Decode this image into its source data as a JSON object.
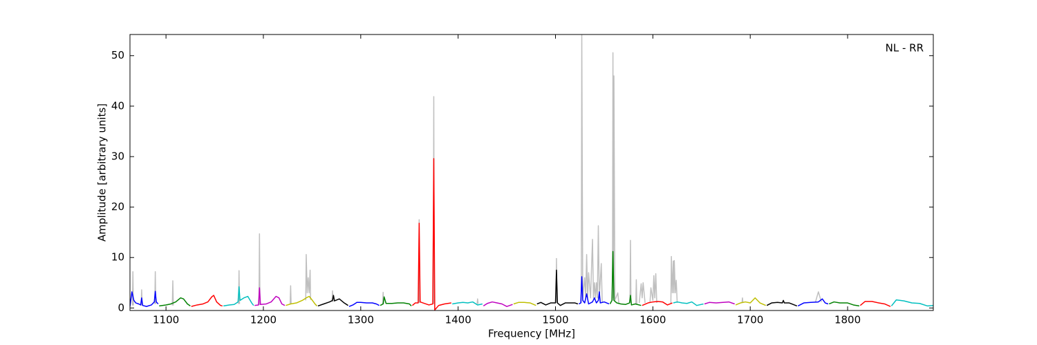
{
  "chart_data": {
    "type": "line",
    "xlabel": "Frequency [MHz]",
    "ylabel": "Amplitude [arbitrary units]",
    "annotation": "NL - RR",
    "xlim": [
      1063,
      1888
    ],
    "ylim": [
      -0.5,
      54.2
    ],
    "xticks": [
      1100,
      1200,
      1300,
      1400,
      1500,
      1600,
      1700,
      1800
    ],
    "yticks": [
      0,
      10,
      20,
      30,
      40,
      50
    ],
    "series": [
      {
        "color": "#bfbfbf",
        "x": [
          1065.5,
          1066,
          1066.5,
          null,
          1074.5,
          1075,
          1075.5,
          null,
          1088.5,
          1089,
          1089.5,
          null,
          1106.5,
          1107,
          1107.5,
          null,
          1174.5,
          1175,
          1175.5,
          null,
          1195.5,
          1196,
          1196.5,
          null,
          1227.5,
          1228,
          1228.5,
          null,
          1243.5,
          1244,
          1245,
          1246,
          1247,
          1248,
          1248.5,
          null,
          1270.5,
          1271,
          1271.5,
          null,
          1322.5,
          1323,
          1323.5,
          null,
          1359.5,
          1360,
          1360.5,
          null,
          1374.5,
          1375,
          1375.5,
          null,
          1419.5,
          1420,
          1420.5,
          null,
          1500.5,
          1501,
          1501.5,
          null,
          1526.5,
          1527,
          1528,
          1530,
          1531,
          1532,
          1533,
          1534,
          1536,
          1538,
          1539,
          1540,
          1541,
          1542,
          1543,
          1544,
          1545,
          1547,
          1548,
          null,
          1558.5,
          1559,
          1559.5,
          1560,
          1561,
          1564,
          1565,
          null,
          1576.5,
          1577,
          1577.5,
          null,
          1582.5,
          1583,
          1583.5,
          null,
          1586,
          1588,
          1589,
          1590,
          1592,
          null,
          1597,
          1598,
          1600,
          1601,
          1602,
          1603,
          1604,
          null,
          1618.5,
          1619,
          1620,
          1621,
          1621.5,
          1622,
          1623,
          1624,
          1625,
          null,
          1691.5,
          1692,
          1692.5,
          null,
          1767,
          1770,
          1773
        ],
        "values": [
          0.5,
          7.2,
          0.5,
          null,
          0.5,
          3.6,
          0.5,
          null,
          0.8,
          7.2,
          0.8,
          null,
          0.5,
          5.4,
          0.5,
          null,
          0.8,
          7.4,
          0.8,
          null,
          0.6,
          14.7,
          0.6,
          null,
          0.8,
          4.4,
          0.8,
          null,
          1.5,
          10.6,
          3,
          6,
          3,
          7.5,
          1.6,
          null,
          1.2,
          3.4,
          1.2,
          null,
          0.8,
          3.1,
          0.8,
          null,
          1,
          17.5,
          1,
          null,
          0.8,
          41.9,
          0.8,
          null,
          0.8,
          1.8,
          0.8,
          null,
          1,
          9.8,
          1,
          null,
          1,
          54.2,
          2,
          6,
          2,
          10.6,
          2,
          7,
          2,
          13.6,
          2,
          5,
          2,
          5,
          2,
          16.3,
          2,
          8.8,
          1,
          null,
          1.5,
          50.6,
          2,
          46,
          1.5,
          3,
          1,
          null,
          1,
          13.4,
          1,
          null,
          0.8,
          5.6,
          0.8,
          null,
          1,
          4.8,
          2,
          5,
          1,
          null,
          1,
          4,
          1.5,
          6.4,
          2,
          6.8,
          1,
          null,
          1,
          10.2,
          3,
          9.3,
          3,
          9.4,
          3,
          5.5,
          1,
          null,
          1,
          2.0,
          1,
          null,
          1.2,
          3.2,
          1.2
        ]
      },
      {
        "color": "#0000ff",
        "x": [
          1063,
          1065,
          1067,
          1069,
          1072,
          1074,
          1075,
          1076,
          1080,
          1085,
          1088,
          1089,
          1090,
          1092
        ],
        "values": [
          0.3,
          3.2,
          1.5,
          1.0,
          0.8,
          0.6,
          2.0,
          0.5,
          0.3,
          0.6,
          1.2,
          3.3,
          1.2,
          0.8
        ]
      },
      {
        "color": "#008000",
        "x": [
          1093,
          1100,
          1105,
          1110,
          1115,
          1118,
          1122,
          1125
        ],
        "values": [
          0.4,
          0.6,
          0.8,
          1.2,
          2.0,
          1.8,
          0.8,
          0.4
        ]
      },
      {
        "color": "#ff0000",
        "x": [
          1126,
          1132,
          1138,
          1143,
          1147,
          1149,
          1152,
          1156,
          1158
        ],
        "values": [
          0.3,
          0.6,
          0.8,
          1.2,
          2.2,
          2.5,
          1.2,
          0.5,
          0.4
        ]
      },
      {
        "color": "#00bfbf",
        "x": [
          1159,
          1165,
          1170,
          1174,
          1175,
          1176,
          1180,
          1184,
          1188,
          1190
        ],
        "values": [
          0.4,
          0.6,
          0.7,
          1.2,
          4.2,
          1.5,
          2.0,
          2.3,
          1.0,
          0.5
        ]
      },
      {
        "color": "#bf00bf",
        "x": [
          1191,
          1195,
          1196,
          1197,
          1203,
          1208,
          1213,
          1216,
          1219,
          1222
        ],
        "values": [
          0.5,
          0.6,
          4.0,
          0.7,
          0.8,
          1.2,
          2.3,
          2.0,
          0.8,
          0.5
        ]
      },
      {
        "color": "#bfbf00",
        "x": [
          1223,
          1228,
          1234,
          1240,
          1244,
          1247,
          1250,
          1253,
          1255
        ],
        "values": [
          0.5,
          0.8,
          1.0,
          1.5,
          2.0,
          2.3,
          1.6,
          0.8,
          0.4
        ]
      },
      {
        "color": "#000000",
        "x": [
          1256,
          1262,
          1268,
          1271,
          1272,
          1273,
          1278,
          1283,
          1287
        ],
        "values": [
          0.4,
          0.8,
          1.2,
          1.5,
          2.5,
          1.4,
          1.8,
          1.0,
          0.5
        ]
      },
      {
        "color": "#0000ff",
        "x": [
          1288,
          1292,
          1296,
          1300,
          1306,
          1312,
          1316,
          1319
        ],
        "values": [
          0.3,
          0.6,
          1.1,
          1.1,
          1.0,
          1.0,
          0.8,
          0.5
        ]
      },
      {
        "color": "#008000",
        "x": [
          1320,
          1323,
          1324,
          1326,
          1332,
          1338,
          1344,
          1350,
          1352
        ],
        "values": [
          0.5,
          0.8,
          2.2,
          0.9,
          0.9,
          1.0,
          1.0,
          0.8,
          0.4
        ]
      },
      {
        "color": "#ff0000",
        "x": [
          1353,
          1356,
          1359,
          1360,
          1361,
          1364,
          1370,
          1374,
          1375,
          1376,
          1380,
          1386,
          1393
        ],
        "values": [
          0.5,
          1.0,
          1.0,
          16.8,
          1.2,
          1.0,
          0.6,
          0.8,
          29.6,
          -0.4,
          0.5,
          0.8,
          1.0
        ]
      },
      {
        "color": "#00bfbf",
        "x": [
          1394,
          1400,
          1405,
          1410,
          1415,
          1420,
          1425
        ],
        "values": [
          0.8,
          1.0,
          1.1,
          1.0,
          1.2,
          0.6,
          0.8
        ]
      },
      {
        "color": "#bf00bf",
        "x": [
          1426,
          1430,
          1435,
          1440,
          1445,
          1450,
          1456
        ],
        "values": [
          0.4,
          0.9,
          1.2,
          1.0,
          0.8,
          0.3,
          0.7
        ]
      },
      {
        "color": "#bfbf00",
        "x": [
          1457,
          1462,
          1468,
          1474,
          1480
        ],
        "values": [
          0.8,
          1.1,
          1.1,
          1.0,
          0.5
        ]
      },
      {
        "color": "#000000",
        "x": [
          1481,
          1485,
          1490,
          1495,
          1500,
          1501,
          1502,
          1505,
          1510,
          1515,
          1520,
          1523
        ],
        "values": [
          0.8,
          1.1,
          0.6,
          1.0,
          1.0,
          7.5,
          1.0,
          0.5,
          1.0,
          1.0,
          1.0,
          0.8
        ]
      },
      {
        "color": "#0000ff",
        "x": [
          1524,
          1526,
          1527,
          1528,
          1530,
          1532,
          1534,
          1538,
          1540,
          1542,
          1544,
          1545,
          1546,
          1550,
          1555
        ],
        "values": [
          0.8,
          1.0,
          6.2,
          1.5,
          1.0,
          2.8,
          0.8,
          1.2,
          2.0,
          1.0,
          1.5,
          3.2,
          1.0,
          1.2,
          0.8
        ]
      },
      {
        "color": "#008000",
        "x": [
          1556,
          1558,
          1559,
          1560,
          1563,
          1567,
          1572,
          1576,
          1577,
          1578,
          1582,
          1588
        ],
        "values": [
          0.8,
          1.5,
          11.2,
          1.5,
          1.0,
          0.8,
          0.7,
          1.0,
          2.5,
          0.6,
          0.8,
          0.5
        ]
      },
      {
        "color": "#ff0000",
        "x": [
          1589,
          1595,
          1600,
          1605,
          1610,
          1615,
          1620
        ],
        "values": [
          0.5,
          1.0,
          1.2,
          1.3,
          1.2,
          0.6,
          1.0
        ]
      },
      {
        "color": "#00bfbf",
        "x": [
          1621,
          1625,
          1630,
          1635,
          1640,
          1645,
          1652
        ],
        "values": [
          1.0,
          1.2,
          1.0,
          0.9,
          1.2,
          0.5,
          0.8
        ]
      },
      {
        "color": "#bf00bf",
        "x": [
          1653,
          1658,
          1665,
          1672,
          1678,
          1684
        ],
        "values": [
          0.8,
          1.1,
          1.0,
          1.1,
          1.2,
          0.8
        ]
      },
      {
        "color": "#bfbf00",
        "x": [
          1685,
          1690,
          1695,
          1700,
          1705,
          1710,
          1716
        ],
        "values": [
          0.6,
          1.0,
          1.2,
          1.0,
          2.0,
          1.0,
          0.5
        ]
      },
      {
        "color": "#000000",
        "x": [
          1717,
          1722,
          1728,
          1733,
          1734,
          1735,
          1740,
          1748
        ],
        "values": [
          0.5,
          1.0,
          1.1,
          1.0,
          1.5,
          1.0,
          1.0,
          0.4
        ]
      },
      {
        "color": "#0000ff",
        "x": [
          1749,
          1755,
          1762,
          1770,
          1774,
          1777,
          1780
        ],
        "values": [
          0.4,
          1.0,
          1.1,
          1.2,
          1.8,
          1.0,
          0.8
        ]
      },
      {
        "color": "#008000",
        "x": [
          1781,
          1786,
          1792,
          1800,
          1806,
          1812
        ],
        "values": [
          0.8,
          1.2,
          1.0,
          1.0,
          0.6,
          0.4
        ]
      },
      {
        "color": "#ff0000",
        "x": [
          1813,
          1818,
          1825,
          1832,
          1838,
          1844
        ],
        "values": [
          0.5,
          1.3,
          1.3,
          1.0,
          0.8,
          0.3
        ]
      },
      {
        "color": "#00bfbf",
        "x": [
          1845,
          1850,
          1858,
          1866,
          1874,
          1882,
          1888
        ],
        "values": [
          0.4,
          1.6,
          1.4,
          1.0,
          0.9,
          0.4,
          0.5
        ]
      }
    ]
  }
}
